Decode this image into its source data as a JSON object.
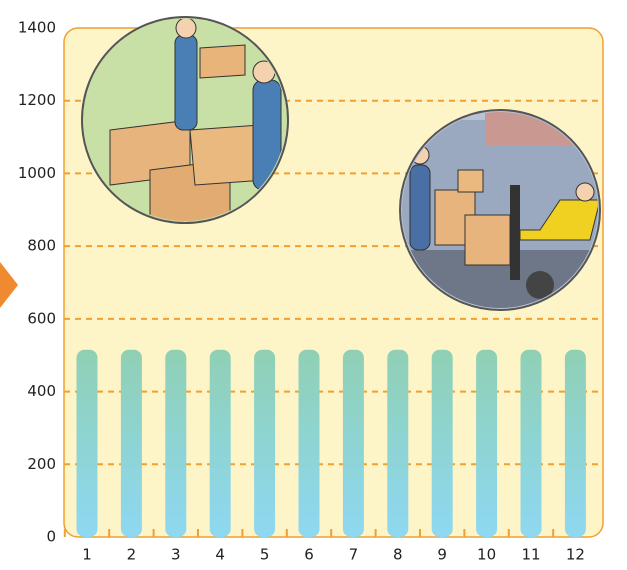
{
  "chart_data": {
    "type": "bar",
    "categories": [
      "1",
      "2",
      "3",
      "4",
      "5",
      "6",
      "7",
      "8",
      "9",
      "10",
      "11",
      "12"
    ],
    "values": [
      515,
      515,
      515,
      515,
      515,
      515,
      515,
      515,
      515,
      515,
      515,
      515
    ],
    "color": "#8fd0b4",
    "ylim": [
      0,
      1400
    ],
    "yticks": [
      0,
      200,
      400,
      600,
      800,
      1000,
      1200,
      1400
    ],
    "grid": true
  }
}
